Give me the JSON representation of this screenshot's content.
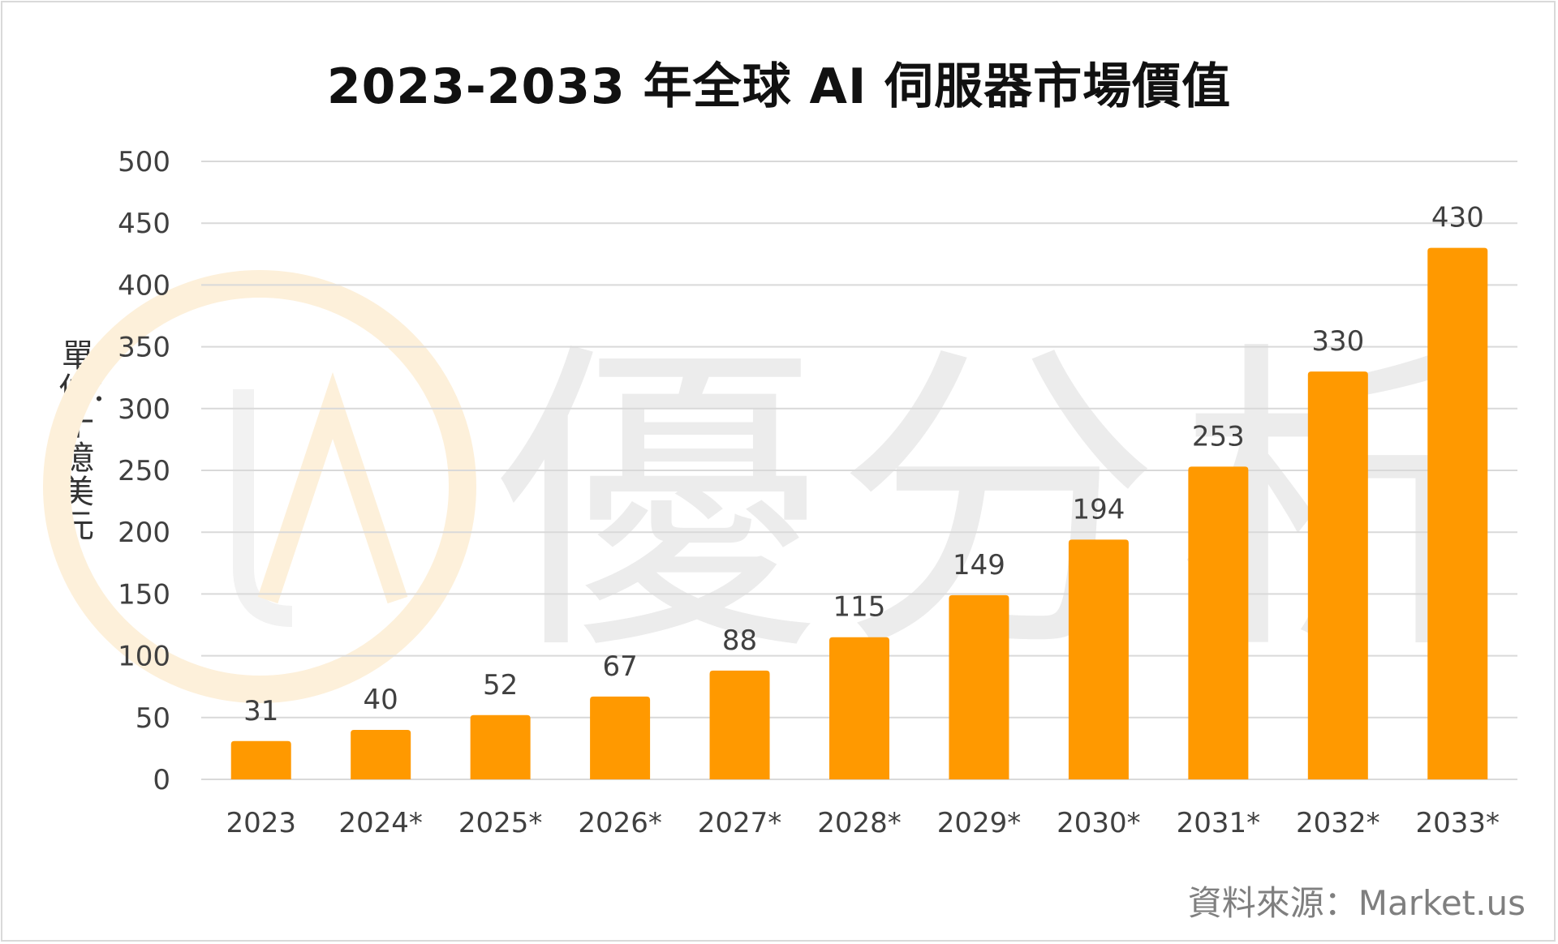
{
  "chart_data": {
    "type": "bar",
    "title": "2023-2033 年全球 AI 伺服器市場價值",
    "ylabel": "單位：十億美元",
    "xlabel": "",
    "categories": [
      "2023",
      "2024*",
      "2025*",
      "2026*",
      "2027*",
      "2028*",
      "2029*",
      "2030*",
      "2031*",
      "2032*",
      "2033*"
    ],
    "values": [
      31,
      40,
      52,
      67,
      88,
      115,
      149,
      194,
      253,
      330,
      430
    ],
    "ylim": [
      0,
      500
    ],
    "yticks": [
      0,
      50,
      100,
      150,
      200,
      250,
      300,
      350,
      400,
      450,
      500
    ],
    "grid": true,
    "data_labels": true,
    "legend": "none"
  },
  "source": "資料來源：Market.us",
  "watermark": "優分析",
  "colors": {
    "bar": "#ff9900",
    "grid": "#d9d9d9",
    "text": "#404040",
    "title": "#111111",
    "source": "#7f7f7f",
    "watermark": "#ececec",
    "watermark_logo": "#fdf0da"
  }
}
